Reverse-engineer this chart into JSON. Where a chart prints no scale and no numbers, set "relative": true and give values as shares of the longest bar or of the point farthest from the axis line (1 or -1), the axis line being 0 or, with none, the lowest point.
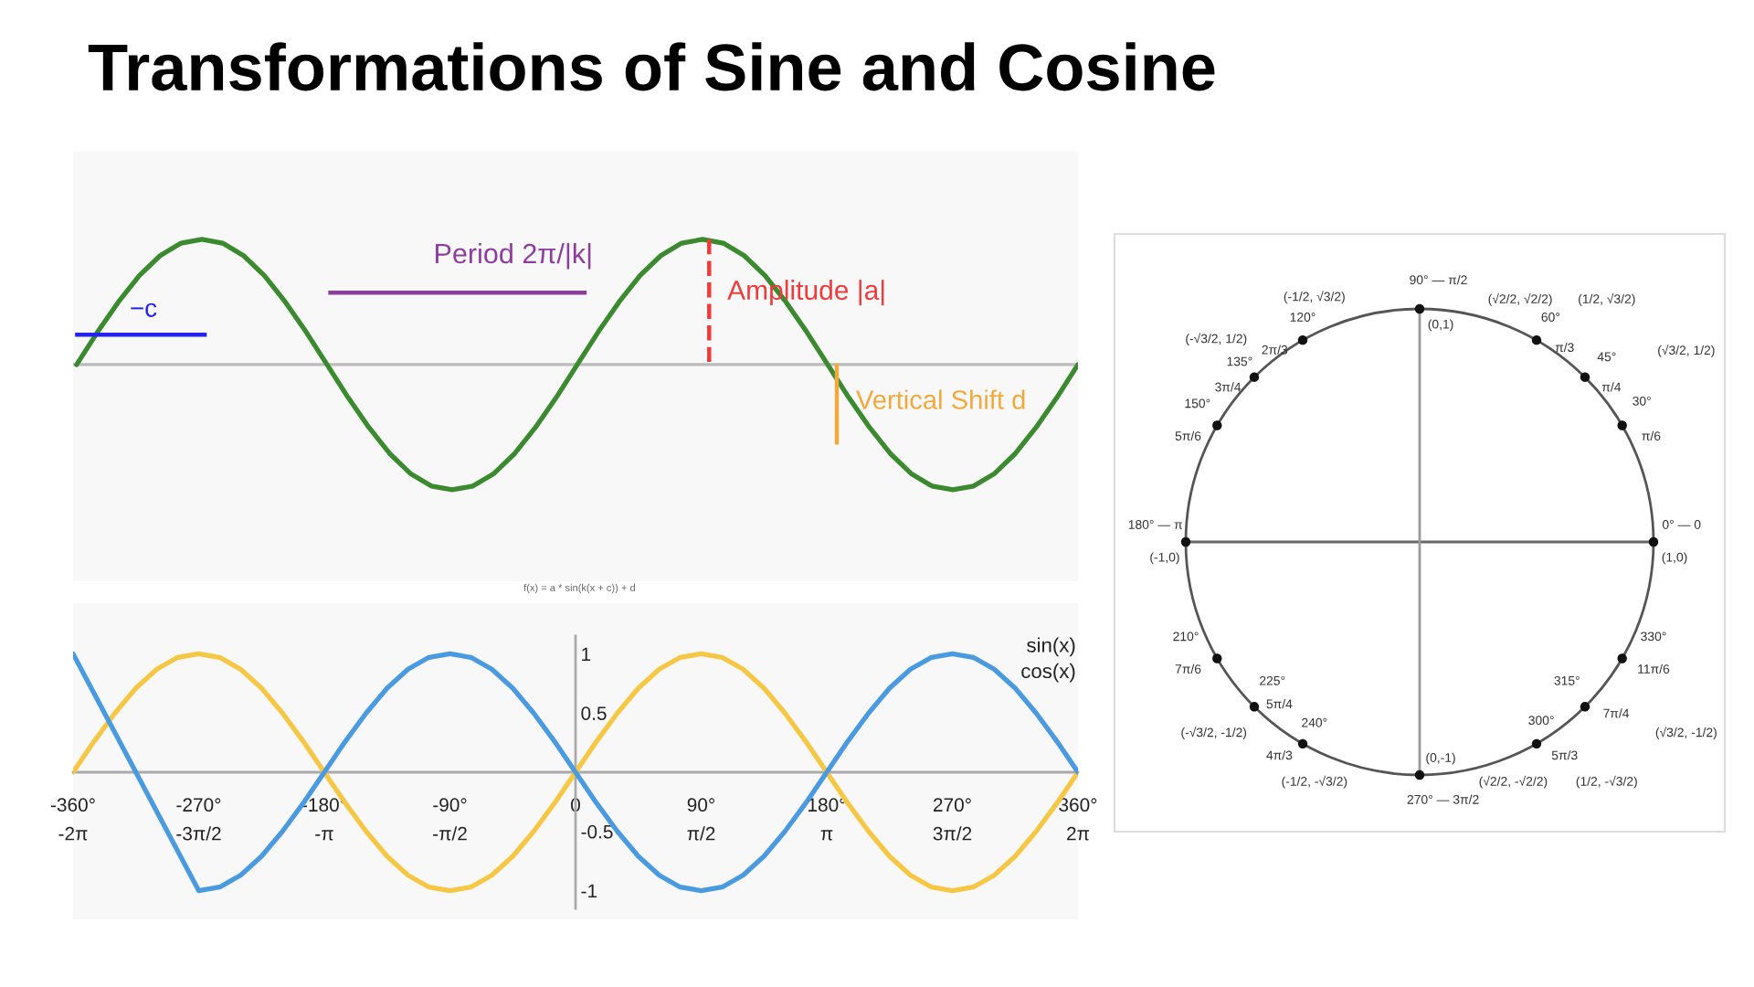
{
  "chart_data": [
    {
      "type": "line",
      "title": "Transformations of Sine and Cosine",
      "relative": true,
      "categories": [
        null,
        null,
        null,
        null,
        null,
        null,
        null,
        null,
        null,
        null,
        null,
        null,
        null,
        null,
        null,
        null,
        null,
        null,
        null,
        null,
        null,
        null,
        null,
        null,
        null,
        null,
        null,
        null,
        null,
        null,
        null,
        null,
        null,
        null,
        null,
        null,
        null,
        null,
        null,
        null,
        null,
        null,
        null,
        null,
        null,
        null,
        null,
        null,
        null
      ],
      "series": [
        {
          "color": "#3b8a2f",
          "values": [
            0,
            0.26,
            0.5,
            0.71,
            0.87,
            0.97,
            1,
            0.97,
            0.87,
            0.71,
            0.5,
            0.26,
            0,
            -0.26,
            -0.5,
            -0.71,
            -0.87,
            -0.97,
            -1,
            -0.97,
            -0.87,
            -0.71,
            -0.5,
            -0.26,
            0,
            0.26,
            0.5,
            0.71,
            0.87,
            0.97,
            1,
            0.97,
            0.87,
            0.71,
            0.5,
            0.26,
            0,
            -0.26,
            -0.5,
            -0.71,
            -0.87,
            -0.97,
            -1,
            -0.97,
            -0.87,
            -0.71,
            -0.5,
            -0.26,
            0
          ]
        }
      ],
      "annotations": [
        "−c",
        "Period 2π/|k|",
        "Amplitude |a|",
        "Vertical Shift d",
        "f(x) = a * sin(k(x + c)) + d"
      ]
    },
    {
      "type": "line",
      "xlim": [
        -360,
        360
      ],
      "ylim": [
        -1.15,
        1.15
      ],
      "xticks": [
        {
          "value": -360,
          "label": "-360°\n-2π"
        },
        {
          "value": -270,
          "label": "-270°\n-3π/2"
        },
        {
          "value": -180,
          "label": "-180°\n-π"
        },
        {
          "value": -90,
          "label": "-90°\n-π/2"
        },
        0,
        {
          "value": 90,
          "label": "90°\nπ/2"
        },
        {
          "value": 180,
          "label": "180°\nπ"
        },
        {
          "value": 270,
          "label": "270°\n3π/2"
        },
        {
          "value": 360,
          "label": "360°\n2π"
        }
      ],
      "yticks": [
        -1,
        -0.5,
        0.5,
        1
      ],
      "series": [
        {
          "color": "#f6c744",
          "x": [
            -360,
            -345,
            -330,
            -315,
            -300,
            -285,
            -270,
            -255,
            -240,
            -225,
            -210,
            -195,
            -180,
            -165,
            -150,
            -135,
            -120,
            -105,
            -90,
            -75,
            -60,
            -45,
            -30,
            -15,
            0,
            15,
            30,
            45,
            60,
            75,
            90,
            105,
            120,
            135,
            150,
            165,
            180,
            195,
            210,
            225,
            240,
            255,
            270,
            285,
            300,
            315,
            330,
            345,
            360
          ],
          "values": [
            0,
            0.26,
            0.5,
            0.71,
            0.87,
            0.97,
            1,
            0.97,
            0.87,
            0.71,
            0.5,
            0.26,
            0,
            -0.26,
            -0.5,
            -0.71,
            -0.87,
            -0.97,
            -1,
            -0.97,
            -0.87,
            -0.71,
            -0.5,
            -0.26,
            0,
            0.26,
            0.5,
            0.71,
            0.87,
            0.97,
            1,
            0.97,
            0.87,
            0.71,
            0.5,
            0.26,
            0,
            -0.26,
            -0.5,
            -0.71,
            -0.87,
            -0.97,
            -1,
            -0.97,
            -0.87,
            -0.71,
            -0.5,
            -0.26,
            0
          ]
        },
        {
          "color": "#4a9ae0",
          "x": [
            -360,
            -270,
            -255,
            -240,
            -225,
            -210,
            -195,
            -180,
            -165,
            -150,
            -135,
            -120,
            -105,
            -90,
            -75,
            -60,
            -45,
            -30,
            -15,
            0,
            15,
            30,
            45,
            60,
            75,
            90,
            105,
            120,
            135,
            150,
            165,
            180,
            195,
            210,
            225,
            240,
            255,
            270,
            285,
            300,
            315,
            330,
            345,
            360
          ],
          "values": [
            1,
            -1,
            -0.97,
            -0.87,
            -0.71,
            -0.5,
            -0.26,
            0,
            0.26,
            0.5,
            0.71,
            0.87,
            0.97,
            1,
            0.97,
            0.87,
            0.71,
            0.5,
            0.26,
            0,
            -0.26,
            -0.5,
            -0.71,
            -0.87,
            -0.97,
            -1,
            -0.97,
            -0.87,
            -0.71,
            -0.5,
            -0.26,
            0,
            0.26,
            0.5,
            0.71,
            0.87,
            0.97,
            1,
            0.97,
            0.87,
            0.71,
            0.5,
            0.26,
            0
          ]
        }
      ],
      "annotations": [
        "sin(x)",
        "cos(x)"
      ]
    },
    {
      "type": "other",
      "annotations": [
        "90° — π/2",
        "(-1/2, √3/2)",
        "(√2/2, √2/2)",
        "(1/2, √3/2)",
        "(0,1)",
        "120°",
        "60°",
        "(-√3/2, 1/2)",
        "2π/3",
        "π/3",
        "(√3/2, 1/2)",
        "135°",
        "45°",
        "3π/4",
        "π/4",
        "150°",
        "30°",
        "5π/6",
        "π/6",
        "180° — π",
        "0° — 0",
        "(-1,0)",
        "(1,0)",
        "210°",
        "330°",
        "7π/6",
        "11π/6",
        "225°",
        "315°",
        "5π/4",
        "7π/4",
        "(-√3/2, -1/2)",
        "240°",
        "300°",
        "(√3/2, -1/2)",
        "4π/3",
        "5π/3",
        "(0,-1)",
        "(-1/2, -√3/2)",
        "(√2/2, -√2/2)",
        "(1/2, -√3/2)",
        "270° — 3π/2"
      ]
    }
  ]
}
